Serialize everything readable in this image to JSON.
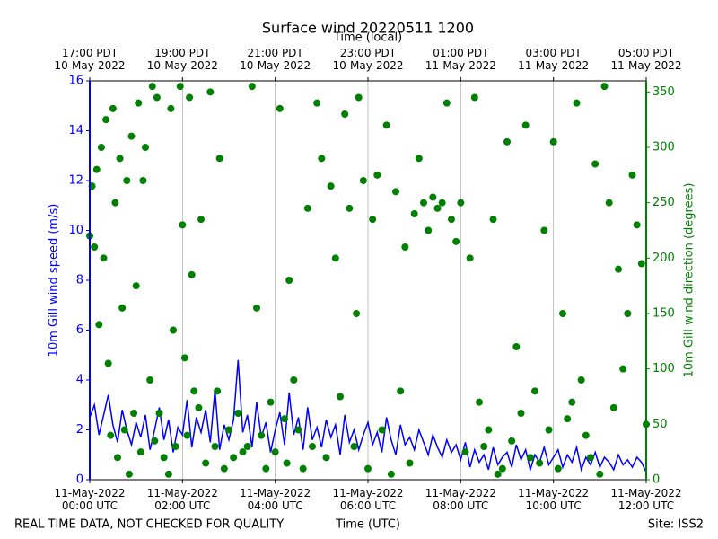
{
  "chart_data": {
    "type": "line",
    "title": "Surface wind 20220511 1200",
    "x2label": "Time (local)",
    "xlabel": "Time (UTC)",
    "ylabel": "10m Gill wind speed (m/s)",
    "y2label": "10m Gill wind direction (degrees)",
    "footer_left": "REAL TIME DATA, NOT CHECKED FOR QUALITY",
    "footer_right": "Site: ISS2",
    "xlim": [
      0,
      12
    ],
    "xticks": [
      {
        "value": 0,
        "label": "11-May-2022\n00:00 UTC"
      },
      {
        "value": 2,
        "label": "11-May-2022\n02:00 UTC"
      },
      {
        "value": 4,
        "label": "11-May-2022\n04:00 UTC"
      },
      {
        "value": 6,
        "label": "11-May-2022\n06:00 UTC"
      },
      {
        "value": 8,
        "label": "11-May-2022\n08:00 UTC"
      },
      {
        "value": 10,
        "label": "11-May-2022\n10:00 UTC"
      },
      {
        "value": 12,
        "label": "11-May-2022\n12:00 UTC"
      }
    ],
    "x2ticks": [
      {
        "value": 0,
        "label": "17:00 PDT\n10-May-2022"
      },
      {
        "value": 2,
        "label": "19:00 PDT\n10-May-2022"
      },
      {
        "value": 4,
        "label": "21:00 PDT\n10-May-2022"
      },
      {
        "value": 6,
        "label": "23:00 PDT\n10-May-2022"
      },
      {
        "value": 8,
        "label": "01:00 PDT\n11-May-2022"
      },
      {
        "value": 10,
        "label": "03:00 PDT\n11-May-2022"
      },
      {
        "value": 12,
        "label": "05:00 PDT\n11-May-2022"
      }
    ],
    "ylim": [
      0,
      16
    ],
    "yticks": [
      0,
      2,
      4,
      6,
      8,
      10,
      12,
      14,
      16
    ],
    "y2lim": [
      0,
      360
    ],
    "y2ticks": [
      0,
      50,
      100,
      150,
      200,
      250,
      300,
      350
    ],
    "grid": "x",
    "series": [
      {
        "type": "line",
        "color": "#0000ff",
        "x": [
          0,
          0.1,
          0.2,
          0.3,
          0.4,
          0.5,
          0.6,
          0.7,
          0.8,
          0.9,
          1,
          1.1,
          1.2,
          1.3,
          1.4,
          1.5,
          1.6,
          1.7,
          1.8,
          1.9,
          2,
          2.1,
          2.2,
          2.3,
          2.4,
          2.5,
          2.6,
          2.7,
          2.8,
          2.9,
          3,
          3.1,
          3.2,
          3.3,
          3.4,
          3.5,
          3.6,
          3.7,
          3.8,
          3.9,
          4,
          4.1,
          4.2,
          4.3,
          4.4,
          4.5,
          4.6,
          4.7,
          4.8,
          4.9,
          5,
          5.1,
          5.2,
          5.3,
          5.4,
          5.5,
          5.6,
          5.7,
          5.8,
          5.9,
          6,
          6.1,
          6.2,
          6.3,
          6.4,
          6.5,
          6.6,
          6.7,
          6.8,
          6.9,
          7,
          7.1,
          7.2,
          7.3,
          7.4,
          7.5,
          7.6,
          7.7,
          7.8,
          7.9,
          8,
          8.1,
          8.2,
          8.3,
          8.4,
          8.5,
          8.6,
          8.7,
          8.8,
          8.9,
          9,
          9.1,
          9.2,
          9.3,
          9.4,
          9.5,
          9.6,
          9.7,
          9.8,
          9.9,
          10,
          10.1,
          10.2,
          10.3,
          10.4,
          10.5,
          10.6,
          10.7,
          10.8,
          10.9,
          11,
          11.1,
          11.2,
          11.3,
          11.4,
          11.5,
          11.6,
          11.7,
          11.8,
          11.9,
          12
        ],
        "values": [
          2.5,
          3.0,
          1.8,
          2.6,
          3.4,
          2.2,
          1.5,
          2.8,
          2.0,
          1.4,
          2.3,
          1.7,
          2.6,
          1.2,
          2.0,
          2.9,
          1.6,
          2.4,
          1.1,
          2.1,
          1.8,
          3.2,
          1.3,
          2.5,
          1.9,
          2.8,
          1.5,
          3.6,
          1.2,
          2.2,
          1.6,
          2.4,
          4.8,
          1.9,
          2.6,
          1.3,
          3.1,
          1.7,
          2.3,
          1.1,
          2.0,
          2.7,
          1.4,
          3.5,
          1.8,
          2.5,
          1.2,
          2.9,
          1.6,
          2.1,
          1.3,
          2.4,
          1.7,
          2.2,
          1.0,
          2.6,
          1.5,
          2.0,
          1.2,
          1.8,
          2.3,
          1.4,
          1.9,
          1.1,
          2.5,
          1.6,
          1.0,
          2.2,
          1.4,
          1.7,
          1.2,
          2.0,
          1.5,
          1.0,
          1.8,
          1.3,
          0.9,
          1.6,
          1.1,
          1.4,
          0.8,
          1.5,
          0.5,
          1.2,
          0.7,
          1.0,
          0.4,
          1.3,
          0.6,
          0.9,
          1.1,
          0.5,
          1.4,
          0.8,
          1.2,
          0.4,
          1.0,
          0.7,
          1.3,
          0.6,
          0.9,
          1.2,
          0.5,
          1.0,
          0.7,
          1.3,
          0.4,
          0.9,
          0.6,
          1.1,
          0.5,
          0.9,
          0.7,
          0.4,
          1.0,
          0.6,
          0.8,
          0.5,
          0.9,
          0.7,
          0.3
        ]
      },
      {
        "type": "scatter",
        "color": "#008000",
        "axis": "y2",
        "x": [
          0,
          0.05,
          0.1,
          0.15,
          0.2,
          0.25,
          0.3,
          0.35,
          0.4,
          0.45,
          0.5,
          0.55,
          0.6,
          0.65,
          0.7,
          0.75,
          0.8,
          0.85,
          0.9,
          0.95,
          1.0,
          1.05,
          1.1,
          1.15,
          1.2,
          1.3,
          1.35,
          1.4,
          1.45,
          1.5,
          1.6,
          1.7,
          1.75,
          1.8,
          1.85,
          1.95,
          2.0,
          2.05,
          2.1,
          2.15,
          2.2,
          2.25,
          2.35,
          2.4,
          2.5,
          2.6,
          2.7,
          2.75,
          2.8,
          2.9,
          3.0,
          3.1,
          3.2,
          3.3,
          3.4,
          3.5,
          3.6,
          3.7,
          3.8,
          3.9,
          4.0,
          4.1,
          4.2,
          4.25,
          4.3,
          4.4,
          4.5,
          4.6,
          4.7,
          4.8,
          4.9,
          5.0,
          5.1,
          5.2,
          5.3,
          5.4,
          5.5,
          5.6,
          5.7,
          5.75,
          5.8,
          5.9,
          6.0,
          6.1,
          6.2,
          6.3,
          6.4,
          6.5,
          6.6,
          6.7,
          6.8,
          6.9,
          7.0,
          7.1,
          7.2,
          7.3,
          7.4,
          7.5,
          7.6,
          7.7,
          7.8,
          7.9,
          8.0,
          8.1,
          8.2,
          8.3,
          8.4,
          8.5,
          8.6,
          8.7,
          8.8,
          8.9,
          9.0,
          9.1,
          9.2,
          9.3,
          9.4,
          9.5,
          9.6,
          9.7,
          9.8,
          9.9,
          10.0,
          10.1,
          10.2,
          10.3,
          10.4,
          10.5,
          10.6,
          10.7,
          10.8,
          10.9,
          11.0,
          11.1,
          11.2,
          11.3,
          11.4,
          11.5,
          11.6,
          11.7,
          11.8,
          11.9,
          12.0
        ],
        "values": [
          220,
          265,
          210,
          280,
          140,
          300,
          200,
          325,
          105,
          40,
          335,
          250,
          20,
          290,
          155,
          45,
          270,
          5,
          310,
          60,
          175,
          340,
          25,
          270,
          300,
          90,
          355,
          35,
          345,
          60,
          20,
          5,
          335,
          135,
          30,
          355,
          230,
          110,
          40,
          345,
          185,
          80,
          65,
          235,
          15,
          350,
          30,
          80,
          290,
          10,
          45,
          20,
          60,
          25,
          30,
          355,
          155,
          40,
          10,
          70,
          25,
          335,
          55,
          15,
          180,
          90,
          45,
          10,
          245,
          30,
          340,
          290,
          20,
          265,
          200,
          75,
          330,
          245,
          30,
          150,
          345,
          270,
          10,
          235,
          275,
          45,
          320,
          5,
          260,
          80,
          210,
          15,
          240,
          290,
          250,
          225,
          255,
          245,
          250,
          340,
          235,
          215,
          250,
          25,
          200,
          345,
          70,
          30,
          45,
          235,
          5,
          10,
          305,
          35,
          120,
          60,
          320,
          20,
          80,
          15,
          225,
          45,
          305,
          10,
          150,
          55,
          70,
          340,
          90,
          40,
          20,
          285,
          5,
          355,
          250,
          65,
          190,
          100,
          150,
          275,
          230,
          195,
          50
        ]
      }
    ]
  }
}
